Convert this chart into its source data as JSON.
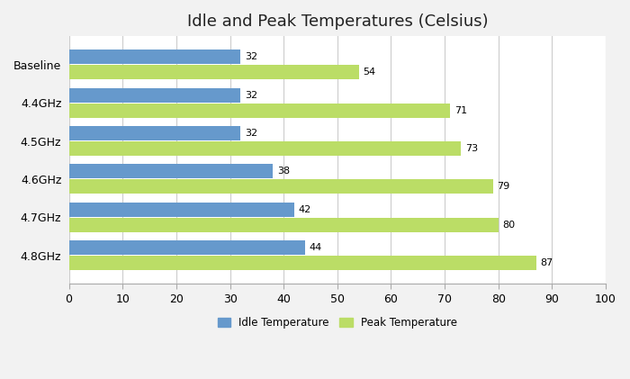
{
  "title": "Idle and Peak Temperatures (Celsius)",
  "categories": [
    "Baseline",
    "4.4GHz",
    "4.5GHz",
    "4.6GHz",
    "4.7GHz",
    "4.8GHz"
  ],
  "idle_values": [
    32,
    32,
    32,
    38,
    42,
    44
  ],
  "peak_values": [
    54,
    71,
    73,
    79,
    80,
    87
  ],
  "idle_color": "#6699CC",
  "peak_color": "#BBDD66",
  "xlim": [
    0,
    100
  ],
  "xticks": [
    0,
    10,
    20,
    30,
    40,
    50,
    60,
    70,
    80,
    90,
    100
  ],
  "background_color": "#F2F2F2",
  "plot_bg_color": "#FFFFFF",
  "grid_color": "#CCCCCC",
  "bar_height": 0.38,
  "legend_idle": "Idle Temperature",
  "legend_peak": "Peak Temperature",
  "title_fontsize": 13,
  "label_fontsize": 8.5,
  "tick_fontsize": 9,
  "value_fontsize": 8
}
